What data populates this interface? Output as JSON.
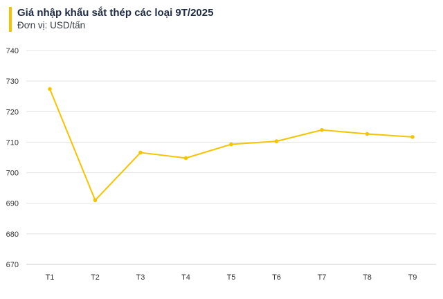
{
  "header": {
    "title": "Giá nhập khẩu sắt thép các loại 9T/2025",
    "subtitle": "Đơn vị: USD/tấn",
    "accent_color": "#f5c400"
  },
  "chart_data": {
    "type": "line",
    "title": "Giá nhập khẩu sắt thép các loại 9T/2025",
    "subtitle": "Đơn vị: USD/tấn",
    "categories": [
      "T1",
      "T2",
      "T3",
      "T4",
      "T5",
      "T6",
      "T7",
      "T8",
      "T9"
    ],
    "series": [
      {
        "values": [
          727.4,
          691.0,
          706.6,
          704.8,
          709.3,
          710.3,
          714.0,
          712.7,
          711.7
        ],
        "color": "#f5c400"
      }
    ],
    "yticks": [
      670,
      680,
      690,
      700,
      710,
      720,
      730,
      740
    ],
    "ylim": [
      670,
      740
    ],
    "grid": true,
    "legend": "none"
  }
}
